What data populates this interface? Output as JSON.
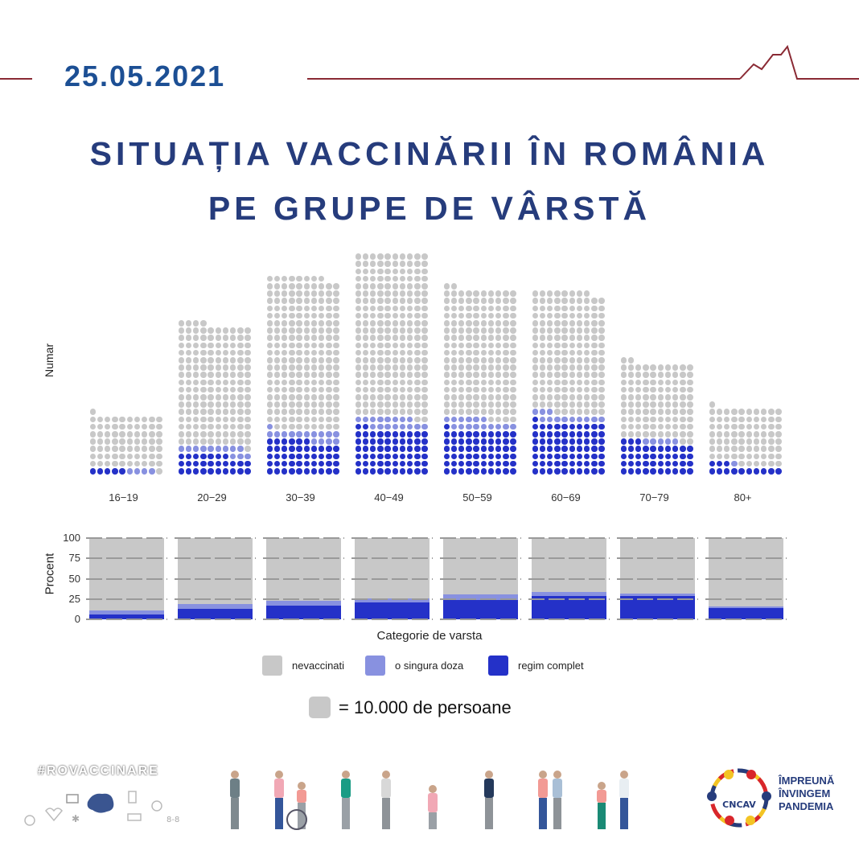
{
  "header": {
    "date": "25.05.2021",
    "title_line1": "SITUAȚIA VACCINĂRII ÎN ROMÂNIA",
    "title_line2": "PE GRUPE DE VÂRSTĂ"
  },
  "colors": {
    "nevaccinati": "#c8c8c8",
    "o_singura_doza": "#8891e0",
    "regim_complet": "#2431c8",
    "title": "#263c7c",
    "date": "#1c4f94",
    "line": "#8a2a34"
  },
  "chart_data": [
    {
      "type": "waffle",
      "title": "",
      "ylabel": "Numar",
      "unit": "1 dot = 10.000 de persoane",
      "categories": [
        "16-19",
        "20-29",
        "30-39",
        "40-49",
        "50-59",
        "60-69",
        "70-79",
        "80+"
      ],
      "series": [
        {
          "name": "regim complet",
          "values": [
            5,
            27,
            46,
            62,
            61,
            71,
            43,
            13
          ]
        },
        {
          "name": "o singura doza",
          "values": [
            4,
            12,
            15,
            16,
            15,
            12,
            5,
            1
          ]
        },
        {
          "name": "nevaccinati",
          "values": [
            72,
            165,
            207,
            222,
            176,
            165,
            104,
            77
          ]
        }
      ],
      "totals": [
        81,
        204,
        268,
        300,
        252,
        248,
        152,
        91
      ]
    },
    {
      "type": "bar",
      "stacked": true,
      "ylabel": "Procent",
      "xlabel": "Categorie de varsta",
      "ylim": [
        0,
        100
      ],
      "yticks": [
        0,
        25,
        50,
        75,
        100
      ],
      "categories": [
        "16-19",
        "20-29",
        "30-39",
        "40-49",
        "50-59",
        "60-69",
        "70-79",
        "80+"
      ],
      "series": [
        {
          "name": "regim complet",
          "values": [
            6.2,
            13.2,
            17.2,
            20.7,
            24.2,
            28.6,
            28.3,
            14.3
          ]
        },
        {
          "name": "o singura doza",
          "values": [
            4.9,
            5.9,
            5.6,
            5.3,
            6.0,
            4.8,
            3.3,
            1.1
          ]
        },
        {
          "name": "nevaccinati",
          "values": [
            88.9,
            80.9,
            77.2,
            74.0,
            69.8,
            66.6,
            68.4,
            84.6
          ]
        }
      ],
      "grid": true
    }
  ],
  "legend": {
    "items": [
      {
        "label": "nevaccinati",
        "color": "#c8c8c8"
      },
      {
        "label": "o singura doza",
        "color": "#8891e0"
      },
      {
        "label": "regim complet",
        "color": "#2431c8"
      }
    ],
    "scale_label": "= 10.000 de persoane"
  },
  "footer": {
    "hashtag": "#ROVACCINARE",
    "logo_text_line1": "ÎMPREUNĂ",
    "logo_text_line2": "ÎNVINGEM",
    "logo_text_line3": "PANDEMIA",
    "logo_ring_text": "CNCAV"
  }
}
